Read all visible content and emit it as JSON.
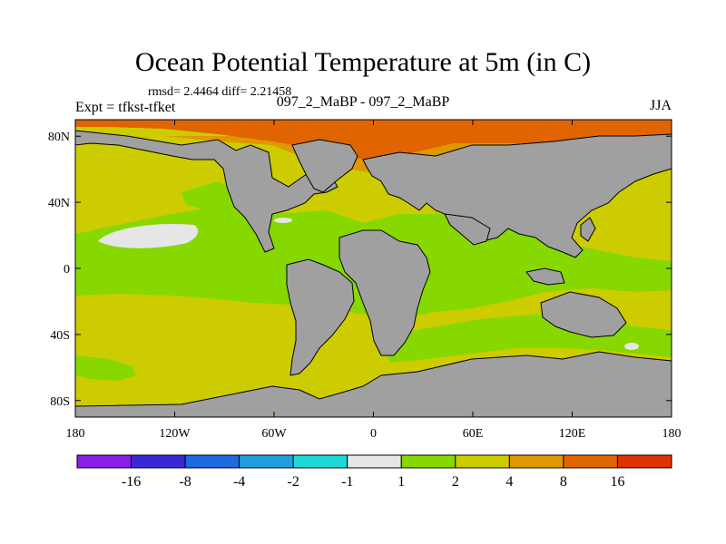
{
  "header": {
    "title": "Ocean Potential Temperature at 5m (in C)",
    "stats": "rmsd= 2.4464 diff= 2.21458",
    "left_label": "Expt = tfkst-tfket",
    "center_label": "097_2_MaBP - 097_2_MaBP",
    "right_label": "JJA"
  },
  "chart_data": {
    "type": "heatmap",
    "title": "Ocean Potential Temperature at 5m (in C)",
    "subtitle": "097_2_MaBP - 097_2_MaBP",
    "season": "JJA",
    "experiment": "Expt = tfkst-tfket",
    "stats": {
      "rmsd": 2.4464,
      "diff": 2.21458
    },
    "x_axis": {
      "range": [
        -180,
        180
      ],
      "ticks": [
        -180,
        -120,
        -60,
        0,
        60,
        120,
        180
      ],
      "tick_labels": [
        "180",
        "120W",
        "60W",
        "0",
        "60E",
        "120E",
        "180"
      ]
    },
    "y_axis": {
      "range": [
        -90,
        90
      ],
      "ticks": [
        80,
        40,
        0,
        -40,
        -80
      ],
      "tick_labels": [
        "80N",
        "40N",
        "0",
        "40S",
        "80S"
      ]
    },
    "colorbar": {
      "labels": [
        "-16",
        "-8",
        "-4",
        "-2",
        "-1",
        "1",
        "2",
        "4",
        "8",
        "16"
      ],
      "colors": [
        "#8a1ee6",
        "#3a28d6",
        "#1e6ae0",
        "#1ea0e0",
        "#1ed8d8",
        "#e6e6e6",
        "#86d800",
        "#cccc00",
        "#e09800",
        "#e06400",
        "#e03200"
      ]
    },
    "colors": {
      "land": "#a0a0a0",
      "ocean_band_1_2": "#86d800",
      "ocean_band_2_4": "#cccc00",
      "ocean_band_4_8": "#e09800",
      "ocean_band_8_16": "#e06400",
      "ocean_band_neg1_1": "#e6e6e6"
    }
  }
}
